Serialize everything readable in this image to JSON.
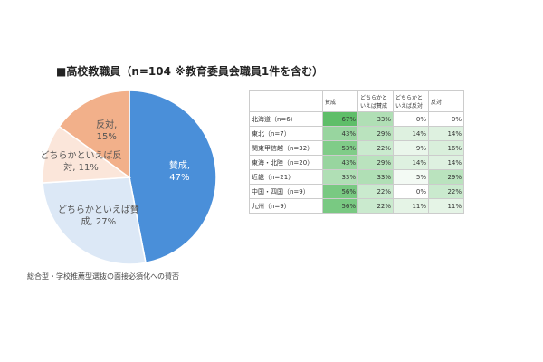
{
  "chart_data": {
    "type": "pie",
    "title": "■高校教職員（n=104 ※教育委員会職員1件を含む）",
    "categories": [
      "賛成,",
      "どちらかといえば賛成,",
      "どちらかといえば反対,",
      "反対,"
    ],
    "values": [
      47,
      27,
      11,
      15
    ],
    "value_labels": [
      "47%",
      "27%",
      "11%",
      "15%"
    ],
    "colors": [
      "#4a8fd9",
      "#dce8f6",
      "#fbe6da",
      "#f2b08a"
    ],
    "caption": "総合型・学校推薦型選抜の面接必須化への賛否"
  },
  "table": {
    "header": [
      "",
      "賛成",
      "どちらかといえば賛成",
      "どちらかといえば反対",
      "反対"
    ],
    "rows": [
      [
        "北海道（n=6）",
        "67%",
        "33%",
        "0%",
        "0%"
      ],
      [
        "東北（n=7）",
        "43%",
        "29%",
        "14%",
        "14%"
      ],
      [
        "関東甲信越（n=32）",
        "53%",
        "22%",
        "9%",
        "16%"
      ],
      [
        "東海・北陸（n=20）",
        "43%",
        "29%",
        "14%",
        "14%"
      ],
      [
        "近畿（n=21）",
        "33%",
        "33%",
        "5%",
        "29%"
      ],
      [
        "中国・四国（n=9）",
        "56%",
        "22%",
        "0%",
        "22%"
      ],
      [
        "九州（n=9）",
        "56%",
        "22%",
        "11%",
        "11%"
      ]
    ]
  }
}
